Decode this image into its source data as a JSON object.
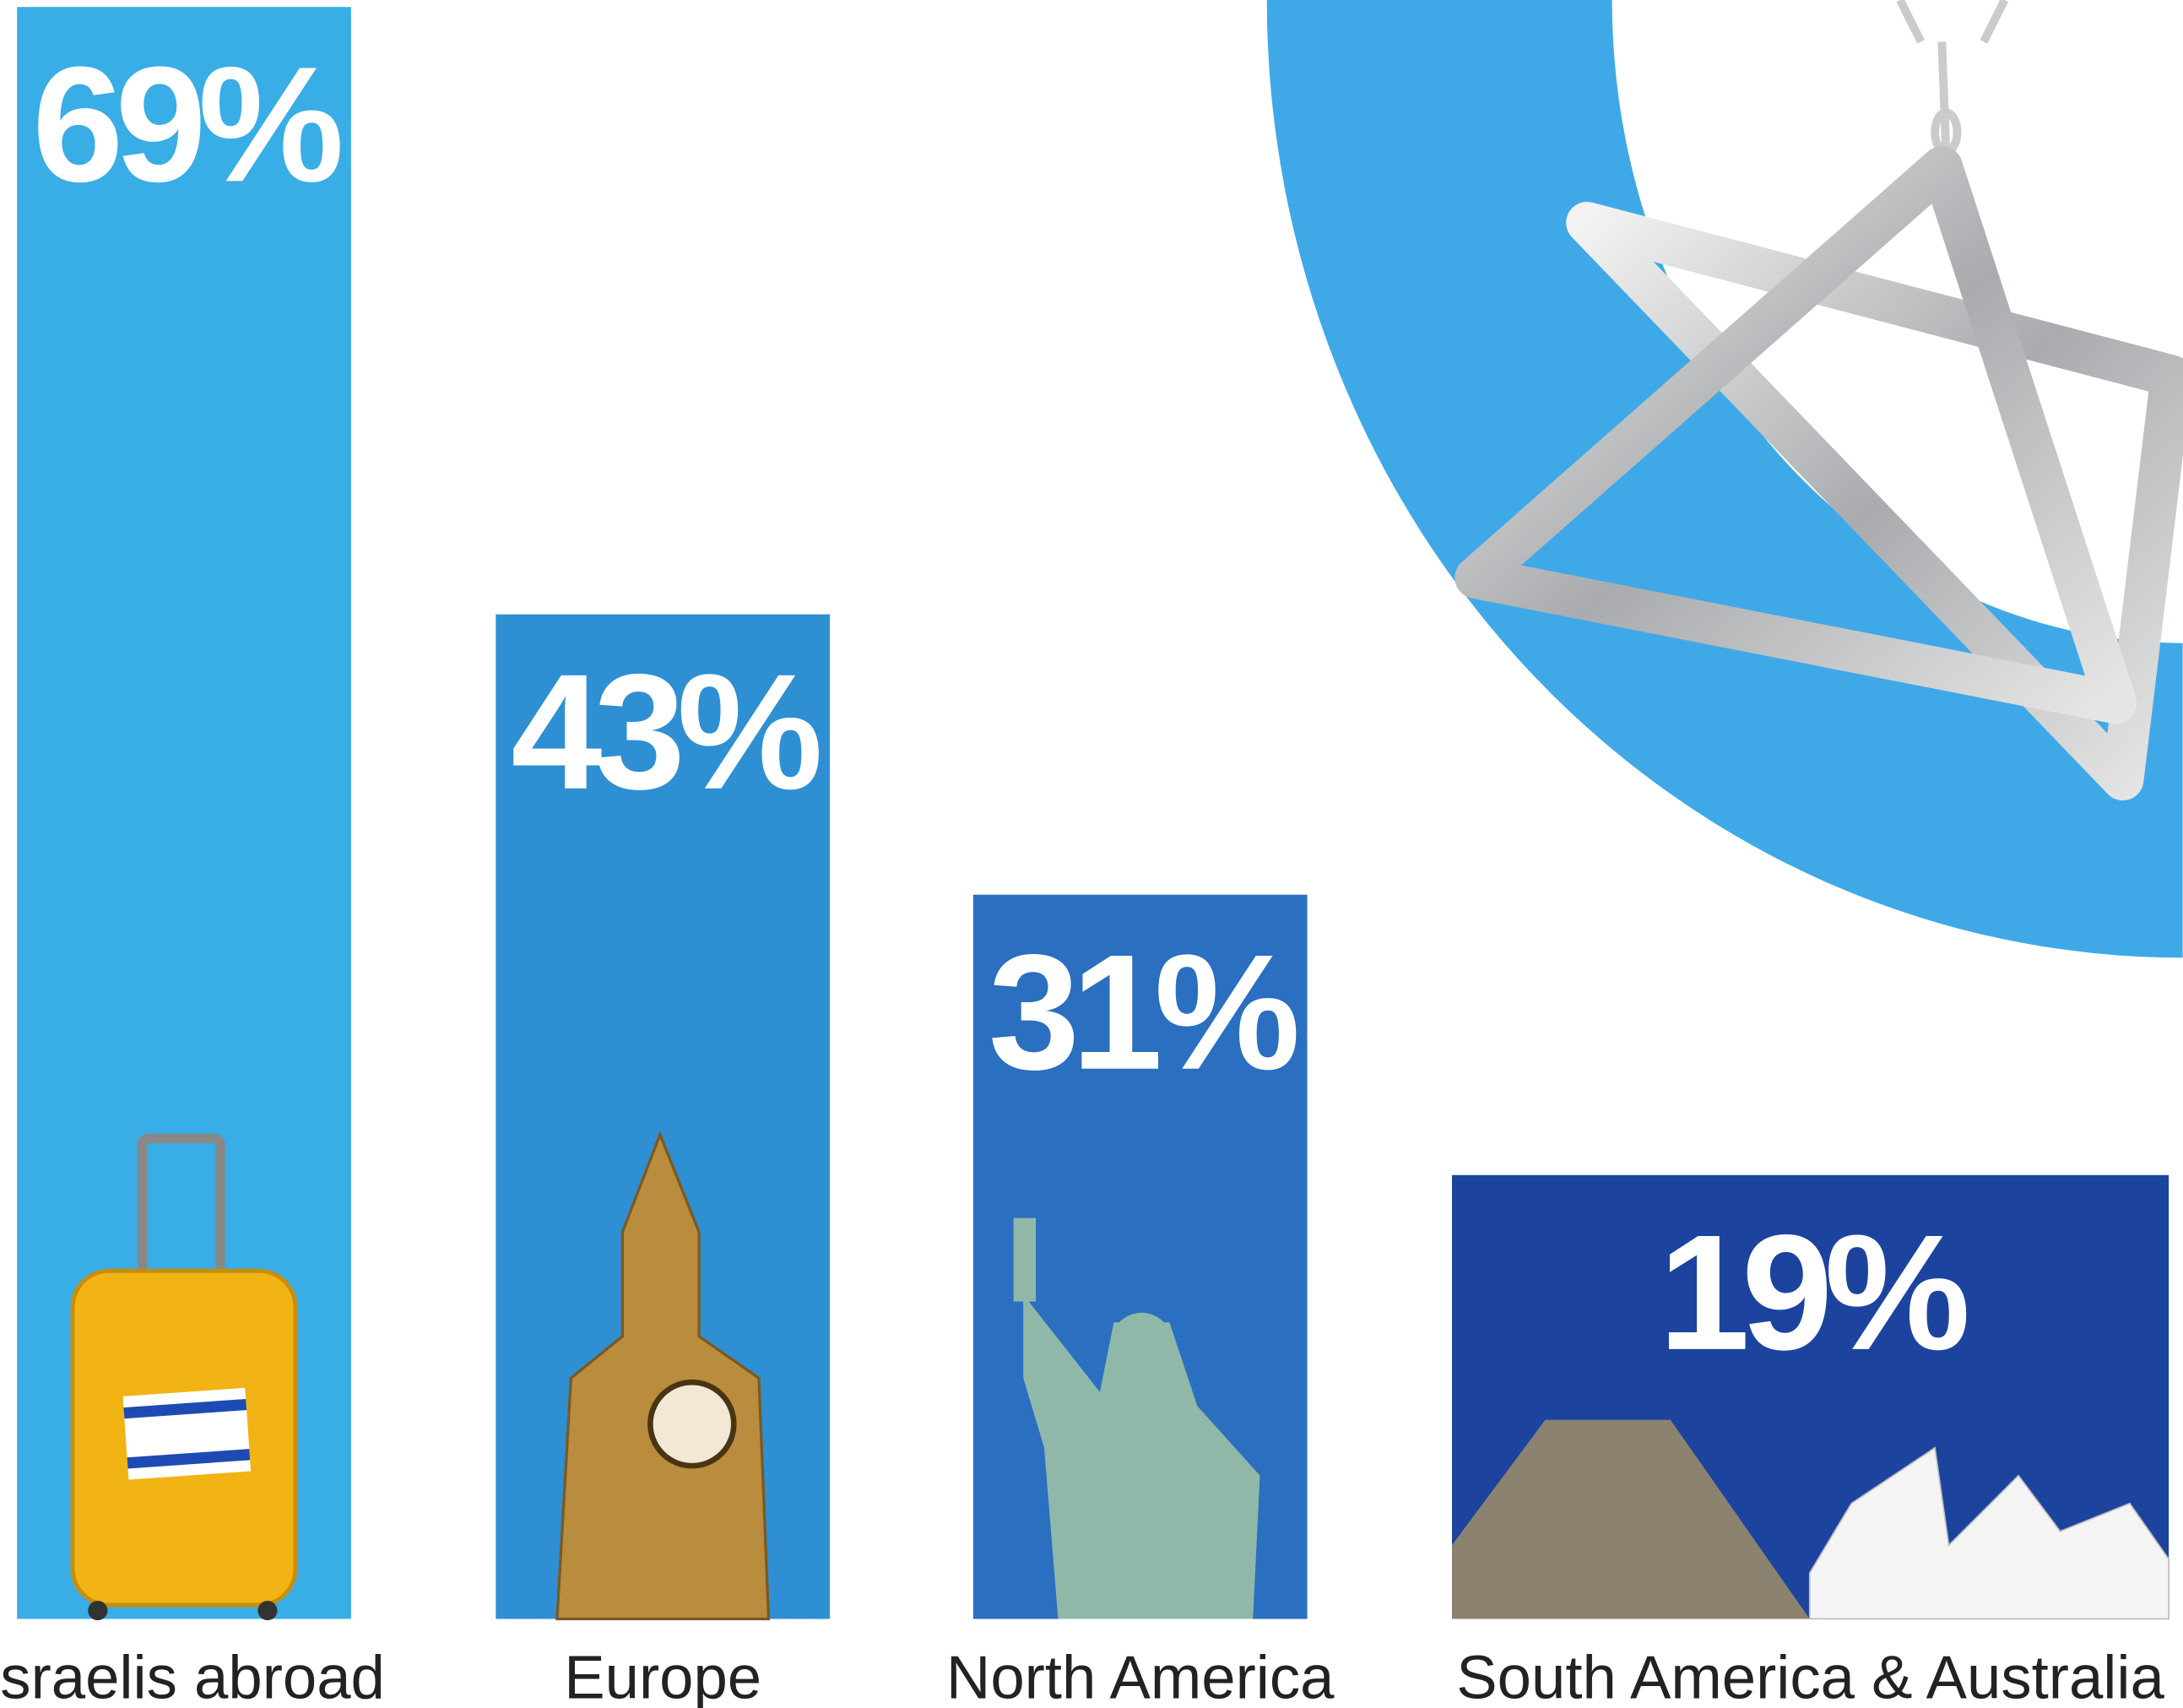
{
  "chart_data": {
    "type": "bar",
    "categories": [
      "Israelis abroad",
      "Europe",
      "North America",
      "South America & Australia"
    ],
    "values": [
      69,
      43,
      31,
      19
    ],
    "value_labels": [
      "69%",
      "43%",
      "31%",
      "19%"
    ],
    "colors": [
      "#39ade6",
      "#2f8fd3",
      "#2a6fc0",
      "#1c449e"
    ]
  }
}
